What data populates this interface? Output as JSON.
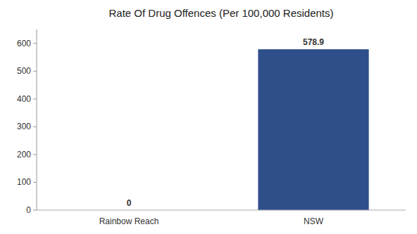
{
  "chart_data": {
    "type": "bar",
    "title": "Rate Of Drug Offences (Per 100,000 Residents)",
    "categories": [
      "Rainbow Reach",
      "NSW"
    ],
    "values": [
      0,
      578.9
    ],
    "colors": [
      "#2e4f8a",
      "#2e4f8a"
    ],
    "ylim": [
      0,
      650
    ],
    "yticks": [
      0,
      100,
      200,
      300,
      400,
      500,
      600
    ],
    "grid": false,
    "data_labels": true
  }
}
